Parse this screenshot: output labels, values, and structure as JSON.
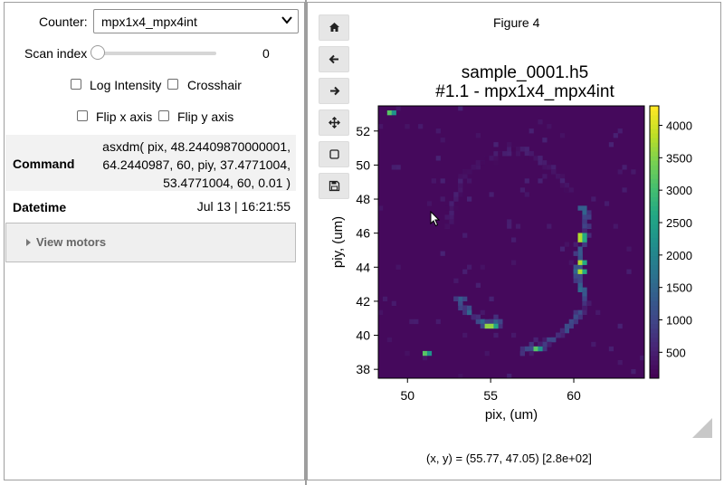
{
  "controls": {
    "counter_label": "Counter:",
    "counter_value": "mpx1x4_mpx4int",
    "scan_index_label": "Scan index",
    "scan_index_value": "0",
    "log_intensity_label": "Log Intensity",
    "crosshair_label": "Crosshair",
    "flip_x_label": "Flip x axis",
    "flip_y_label": "Flip y axis"
  },
  "info": {
    "command_label": "Command",
    "command_lines": [
      "asxdm( pix, 48.24409870000001,",
      "64.2440987, 60, piy, 37.4771004,",
      "53.4771004, 60, 0.01 )"
    ],
    "datetime_label": "Datetime",
    "datetime_value": "Jul 13 | 16:21:55",
    "motors_label": "View motors"
  },
  "figure": {
    "window_title": "Figure 4",
    "title_line1": "sample_0001.h5",
    "title_line2": "#1.1 - mpx1x4_mpx4int",
    "coord_readout": "(x, y) = (55.77, 47.05) [2.8e+02]",
    "toolbar": [
      "home-icon",
      "back-icon",
      "forward-icon",
      "pan-icon",
      "zoom-icon",
      "save-icon"
    ]
  },
  "chart_data": {
    "type": "heatmap",
    "xlabel": "pix, (um)",
    "ylabel": "piy, (um)",
    "xlim": [
      48.244,
      64.244
    ],
    "ylim": [
      37.477,
      53.477
    ],
    "xticks": [
      50,
      55,
      60
    ],
    "yticks": [
      38,
      40,
      42,
      44,
      46,
      48,
      50,
      52
    ],
    "colormap": "viridis",
    "colorbar_range": [
      100,
      4300
    ],
    "colorbar_ticks": [
      500,
      1000,
      1500,
      2000,
      2500,
      3000,
      3500,
      4000
    ],
    "background_value": 200,
    "structures": [
      {
        "name": "right-arc",
        "points": [
          [
            60.5,
            47.5
          ],
          [
            60.8,
            46.5
          ],
          [
            60.6,
            45.5
          ],
          [
            60.3,
            44.5
          ],
          [
            60.2,
            43.5
          ],
          [
            60.5,
            42.7
          ],
          [
            60.8,
            42.0
          ]
        ],
        "value": 1300
      },
      {
        "name": "right-arc-hotspots",
        "points": [
          [
            60.4,
            46.0
          ],
          [
            60.4,
            45.5
          ],
          [
            60.3,
            44.2
          ],
          [
            60.4,
            43.8
          ]
        ],
        "value": 3800
      },
      {
        "name": "lower-right-arc",
        "points": [
          [
            60.7,
            41.8
          ],
          [
            60.2,
            41.0
          ],
          [
            59.5,
            40.3
          ],
          [
            58.5,
            39.6
          ],
          [
            57.5,
            39.2
          ],
          [
            56.8,
            39.0
          ]
        ],
        "value": 1000
      },
      {
        "name": "lower-left-arc",
        "points": [
          [
            53.0,
            42.2
          ],
          [
            53.5,
            41.6
          ],
          [
            54.0,
            41.1
          ],
          [
            54.6,
            40.7
          ],
          [
            55.2,
            40.6
          ],
          [
            55.6,
            40.9
          ]
        ],
        "value": 1300
      },
      {
        "name": "lower-left-hotspots",
        "points": [
          [
            54.7,
            40.6
          ],
          [
            55.1,
            40.6
          ]
        ],
        "value": 3600
      },
      {
        "name": "left-faint-arc",
        "points": [
          [
            52.5,
            46.5
          ],
          [
            52.8,
            48.0
          ],
          [
            53.5,
            49.5
          ],
          [
            55.0,
            50.5
          ],
          [
            56.8,
            51.0
          ],
          [
            58.5,
            50.0
          ],
          [
            59.8,
            48.5
          ]
        ],
        "value": 450
      },
      {
        "name": "isolated-points",
        "points": [
          [
            49.0,
            53.2
          ],
          [
            51.0,
            39.0
          ],
          [
            57.8,
            39.3
          ]
        ],
        "value": 3200
      }
    ]
  }
}
